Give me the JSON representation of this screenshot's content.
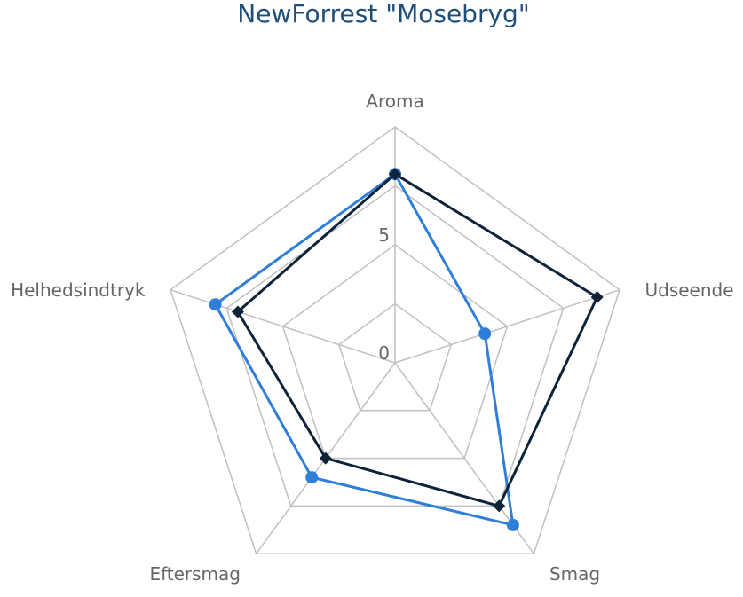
{
  "chart_data": {
    "type": "radar",
    "title": "NewForrest \"Mosebryg\"",
    "categories": [
      "Aroma",
      "Udseende",
      "Smag",
      "Eftersmag",
      "Helhedsindtryk"
    ],
    "r_ticks": [
      "0",
      "5"
    ],
    "r_range": [
      0,
      10
    ],
    "grid": true,
    "series": [
      {
        "marker": "circle",
        "color": "#2f7ed8",
        "values": [
          8,
          4,
          8.5,
          6,
          8
        ]
      },
      {
        "marker": "diamond",
        "color": "#0d233a",
        "values": [
          8,
          9,
          7.5,
          5,
          7
        ]
      }
    ]
  }
}
